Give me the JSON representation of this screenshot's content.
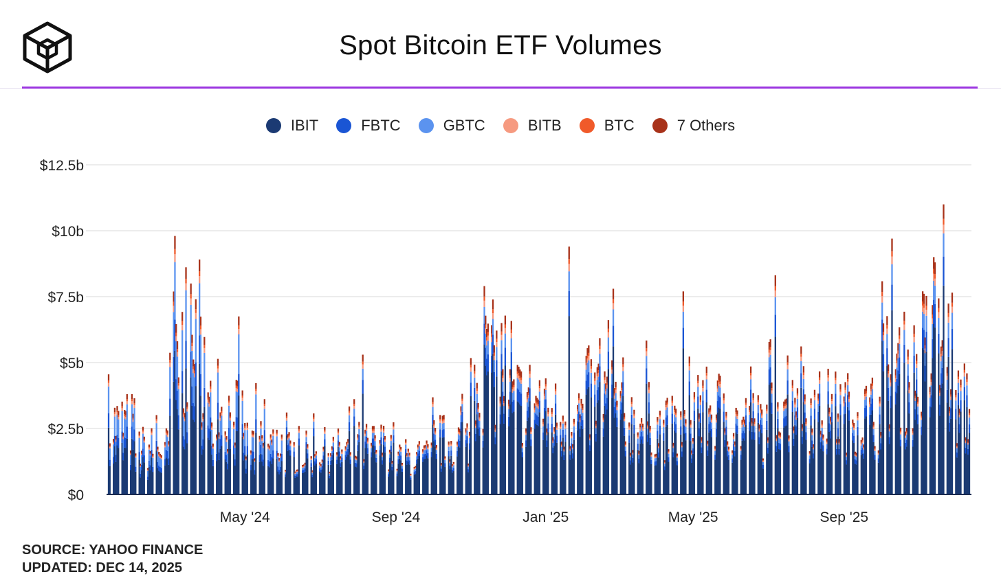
{
  "title": "Spot Bitcoin ETF Volumes",
  "logo_icon": "cube-logo-icon",
  "source": "SOURCE: YAHOO FINANCE",
  "updated": "UPDATED: DEC 14, 2025",
  "colors": {
    "accent_rule": "#9b35e0",
    "IBIT": "#1b3a73",
    "FBTC": "#1a55d4",
    "GBTC": "#5b93ef",
    "BITB": "#f69a80",
    "BTC": "#f05a2a",
    "7 Others": "#a8321a"
  },
  "chart_data": {
    "type": "bar",
    "stacked": true,
    "title": "Spot Bitcoin ETF Volumes",
    "xlabel": "",
    "ylabel": "",
    "ylim": [
      0,
      12.5
    ],
    "y_unit": "billions USD",
    "yticks": [
      "$0",
      "$2.5b",
      "$5b",
      "$7.5b",
      "$10b",
      "$12.5b"
    ],
    "yticks_values": [
      0,
      2.5,
      5,
      7.5,
      10,
      12.5
    ],
    "xticks": [
      "May '24",
      "Sep '24",
      "Jan '25",
      "May '25",
      "Sep '25"
    ],
    "date_range": [
      "2024-01-11",
      "2025-12-12"
    ],
    "legend": [
      "IBIT",
      "FBTC",
      "GBTC",
      "BITB",
      "BTC",
      "7 Others"
    ],
    "legend_position": "top-center",
    "grid": true,
    "series_share": {
      "IBIT": 0.72,
      "FBTC": 0.1,
      "GBTC": 0.08,
      "BITB": 0.03,
      "BTC": 0.02,
      "7 Others": 0.05
    },
    "approx_daily_total_by_month": {
      "2024-01": 3.0,
      "2024-02": 2.0,
      "2024-03": 6.0,
      "2024-04": 3.5,
      "2024-05": 2.2,
      "2024-06": 1.8,
      "2024-07": 1.9,
      "2024-08": 2.1,
      "2024-09": 1.6,
      "2024-10": 2.3,
      "2024-11": 5.5,
      "2024-12": 4.0,
      "2025-01": 3.4,
      "2025-02": 4.2,
      "2025-03": 3.2,
      "2025-04": 2.8,
      "2025-05": 3.6,
      "2025-06": 3.0,
      "2025-07": 4.5,
      "2025-08": 3.6,
      "2025-09": 3.5,
      "2025-10": 5.2,
      "2025-11": 6.0,
      "2025-12": 3.8
    },
    "notable_peaks": [
      {
        "date": "2024-01-11",
        "total": 4.6
      },
      {
        "date": "2024-03-05",
        "total": 9.9
      },
      {
        "date": "2024-03-14",
        "total": 8.7
      },
      {
        "date": "2024-08-05",
        "total": 5.3
      },
      {
        "date": "2024-11-12",
        "total": 7.9
      },
      {
        "date": "2025-01-20",
        "total": 9.4
      },
      {
        "date": "2025-02-25",
        "total": 7.8
      },
      {
        "date": "2025-04-23",
        "total": 7.7
      },
      {
        "date": "2025-10-10",
        "total": 9.7
      },
      {
        "date": "2025-11-14",
        "total": 8.8
      },
      {
        "date": "2025-11-21",
        "total": 11.0
      }
    ]
  }
}
